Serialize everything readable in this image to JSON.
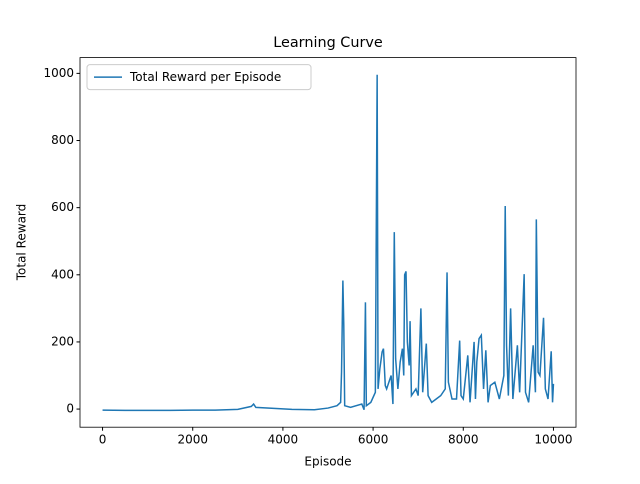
{
  "chart_data": {
    "type": "line",
    "title": "Learning Curve",
    "x_label": "Episode",
    "y_label": "Total Reward",
    "x": [
      0,
      500,
      1000,
      1500,
      2000,
      2500,
      3000,
      3300,
      3350,
      3400,
      3800,
      4200,
      4700,
      5000,
      5200,
      5280,
      5300,
      5330,
      5350,
      5370,
      5500,
      5750,
      5800,
      5830,
      5850,
      5950,
      6050,
      6090,
      6110,
      6150,
      6200,
      6230,
      6270,
      6300,
      6400,
      6440,
      6470,
      6500,
      6550,
      6600,
      6650,
      6680,
      6700,
      6730,
      6760,
      6800,
      6820,
      6850,
      6950,
      7000,
      7060,
      7100,
      7180,
      7220,
      7300,
      7400,
      7500,
      7600,
      7640,
      7670,
      7750,
      7850,
      7920,
      7950,
      8000,
      8100,
      8150,
      8240,
      8270,
      8300,
      8350,
      8400,
      8450,
      8500,
      8550,
      8600,
      8700,
      8800,
      8900,
      8930,
      8960,
      9000,
      9050,
      9100,
      9200,
      9250,
      9350,
      9380,
      9450,
      9550,
      9600,
      9620,
      9660,
      9700,
      9780,
      9820,
      9880,
      9950,
      9980,
      10000
    ],
    "series": [
      {
        "name": "Total Reward per Episode",
        "color": "#1f77b4",
        "values": [
          -3,
          -4,
          -4,
          -4,
          -3,
          -3,
          -1,
          8,
          15,
          5,
          2,
          -1,
          -2,
          3,
          10,
          20,
          110,
          383,
          250,
          10,
          5,
          15,
          -2,
          318,
          10,
          20,
          50,
          996,
          60,
          120,
          170,
          180,
          70,
          60,
          100,
          15,
          527,
          150,
          60,
          140,
          180,
          100,
          400,
          410,
          200,
          130,
          262,
          40,
          60,
          40,
          300,
          50,
          195,
          40,
          20,
          30,
          40,
          60,
          407,
          80,
          30,
          30,
          204,
          40,
          30,
          160,
          20,
          200,
          30,
          140,
          210,
          220,
          60,
          175,
          20,
          70,
          80,
          30,
          100,
          605,
          190,
          40,
          300,
          30,
          190,
          50,
          402,
          50,
          20,
          190,
          50,
          565,
          110,
          100,
          272,
          60,
          30,
          172,
          20,
          75
        ]
      }
    ],
    "xlim": [
      -500,
      10500
    ],
    "ylim": [
      -54,
      1047
    ],
    "xticks": [
      0,
      2000,
      4000,
      6000,
      8000,
      10000
    ],
    "yticks": [
      0,
      200,
      400,
      600,
      800,
      1000
    ],
    "legend": "upper left"
  }
}
